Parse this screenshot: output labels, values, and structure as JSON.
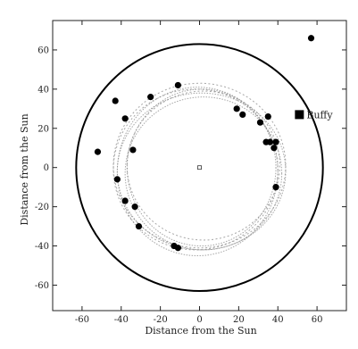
{
  "chart_data": {
    "type": "scatter",
    "title": "",
    "xlabel": "Distance from the Sun",
    "ylabel": "Distance from the Sun",
    "xlim": [
      -75,
      75
    ],
    "ylim": [
      -73,
      75
    ],
    "xticks": [
      -60,
      -40,
      -20,
      0,
      20,
      40,
      60
    ],
    "yticks": [
      -60,
      -40,
      -20,
      0,
      20,
      40,
      60
    ],
    "grid": false,
    "sun": {
      "x": 0,
      "y": 0
    },
    "outer_circle_radius": 63,
    "points": [
      [
        -52,
        8
      ],
      [
        -43,
        34
      ],
      [
        -42,
        -6
      ],
      [
        -38,
        25
      ],
      [
        -38,
        -17
      ],
      [
        -34,
        9
      ],
      [
        -33,
        -20
      ],
      [
        -31,
        -30
      ],
      [
        -25,
        36
      ],
      [
        -13,
        -40
      ],
      [
        -11,
        -41
      ],
      [
        -11,
        42
      ],
      [
        19,
        30
      ],
      [
        22,
        27
      ],
      [
        31,
        23
      ],
      [
        34,
        13
      ],
      [
        35,
        26
      ],
      [
        36,
        13
      ],
      [
        38,
        10
      ],
      [
        39,
        13
      ],
      [
        39,
        -10
      ],
      [
        57,
        66
      ]
    ],
    "annotation": {
      "label": "Buffy",
      "x": 51,
      "y": 27
    },
    "belt_rings": 7
  }
}
